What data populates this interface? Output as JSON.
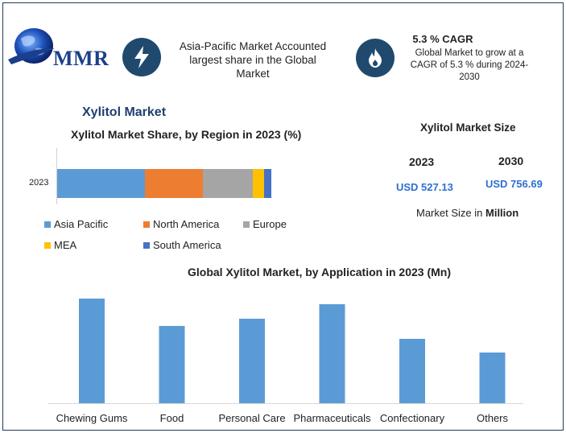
{
  "header": {
    "logo_text": "MMR",
    "note_region": "Asia-Pacific Market Accounted largest share in the Global Market",
    "cagr_title": "5.3 % CAGR",
    "cagr_text": "Global Market to grow at a CAGR of 5.3 % during 2024-2030",
    "icons": [
      "lightning-icon",
      "flame-icon",
      "globe-icon"
    ]
  },
  "market_title": "Xylitol Market",
  "market_size": {
    "title": "Xylitol Market Size",
    "year_start": "2023",
    "year_end": "2030",
    "value_start": "USD 527.13",
    "value_end": "USD 756.69",
    "unit_prefix": "Market Size in",
    "unit_bold": "Million"
  },
  "colors": {
    "asia_pacific": "#5b9bd5",
    "north_america": "#ed7d31",
    "europe": "#a5a5a5",
    "mea": "#ffc000",
    "south_america": "#4472c4",
    "app_bars": "#5b9bd5",
    "header_circle": "#1f4a6e"
  },
  "chart_data": [
    {
      "type": "bar",
      "stacked": true,
      "orientation": "horizontal",
      "title": "Xylitol Market Share, by Region in 2023 (%)",
      "categories": [
        "2023"
      ],
      "series": [
        {
          "name": "Asia Pacific",
          "values": [
            41
          ]
        },
        {
          "name": "North America",
          "values": [
            27
          ]
        },
        {
          "name": "Europe",
          "values": [
            23.5
          ]
        },
        {
          "name": "MEA",
          "values": [
            5
          ]
        },
        {
          "name": "South America",
          "values": [
            3.5
          ]
        }
      ],
      "legend": "bottom"
    },
    {
      "type": "bar",
      "title": "Global Xylitol Market, by Application in 2023 (Mn)",
      "categories": [
        "Chewing Gums",
        "Food",
        "Personal Care",
        "Pharmaceuticals",
        "Confectionary",
        "Others"
      ],
      "values": [
        130,
        96,
        105,
        123,
        80,
        63
      ],
      "ylim": [
        0,
        140
      ]
    }
  ]
}
